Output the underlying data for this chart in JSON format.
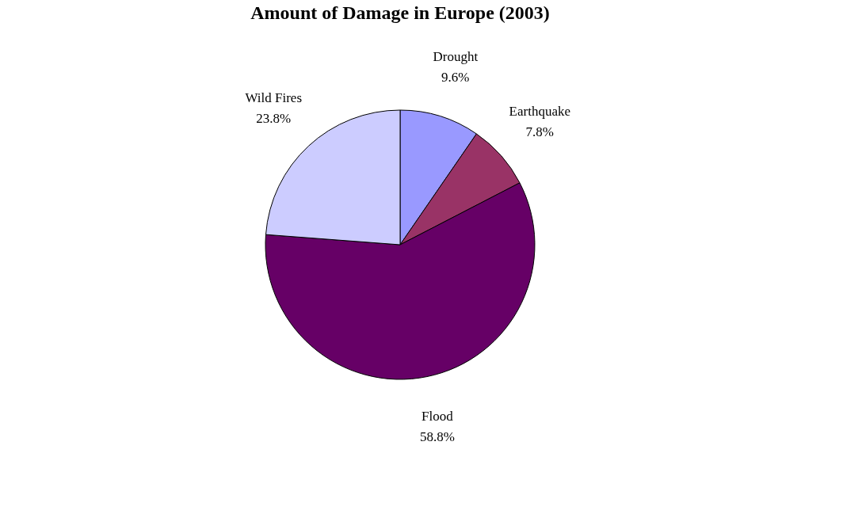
{
  "chart_data": {
    "type": "pie",
    "title": "Amount of Damage in Europe (2003)",
    "categories": [
      "Drought",
      "Earthquake",
      "Flood",
      "Wild Fires"
    ],
    "values": [
      9.6,
      7.8,
      58.8,
      23.8
    ],
    "value_labels": [
      "9.6%",
      "7.8%",
      "58.8%",
      "23.8%"
    ],
    "colors": [
      "#9999ff",
      "#993366",
      "#660066",
      "#ccccff"
    ],
    "legend": false
  }
}
